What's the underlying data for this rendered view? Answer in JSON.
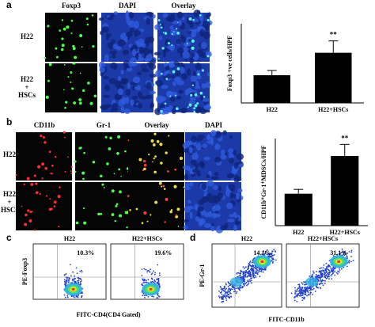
{
  "panel_a": {
    "label": "a",
    "columns": [
      "Foxp3",
      "DAPI",
      "Overlay"
    ],
    "rows": [
      [
        "H22"
      ],
      [
        "H22",
        "+",
        "HSCs"
      ]
    ],
    "chart": {
      "type": "bar",
      "y_label": "Foxp3 +ve cells/HPF",
      "categories": [
        "H22",
        "H22+HSCs"
      ],
      "values": [
        10.5,
        19
      ],
      "errors": [
        1.8,
        4.5
      ],
      "ylim": [
        0,
        30
      ],
      "color": "#000000",
      "significance": "**"
    }
  },
  "panel_b": {
    "label": "b",
    "columns": [
      "CD11b",
      "Gr-1",
      "Overlay",
      "DAPI"
    ],
    "rows": [
      [
        "H22"
      ],
      [
        "H22",
        "+",
        "HSCs"
      ]
    ],
    "chart": {
      "type": "bar",
      "y_label": "CD11b⁺Gr-1⁺MDSCs/HPF",
      "categories": [
        "H22",
        "H22+HSCs"
      ],
      "values": [
        11,
        24
      ],
      "errors": [
        1.5,
        4
      ],
      "ylim": [
        0,
        30
      ],
      "color": "#000000",
      "significance": "**"
    }
  },
  "panel_c": {
    "label": "c",
    "plots": [
      {
        "title": "H22",
        "percent": "10.3%"
      },
      {
        "title": "H22+HSCs",
        "percent": "19.6%"
      }
    ],
    "y_label": "PE-Foxp3",
    "x_label": "FITC-CD4(CD4 Gated)"
  },
  "panel_d": {
    "label": "d",
    "plots": [
      {
        "title": "H22",
        "percent": "14.1%"
      },
      {
        "title": "H22+HSCs",
        "percent": "31.1%"
      }
    ],
    "y_label": "PE-Gr-1",
    "x_label": "FITC-CD11b"
  }
}
